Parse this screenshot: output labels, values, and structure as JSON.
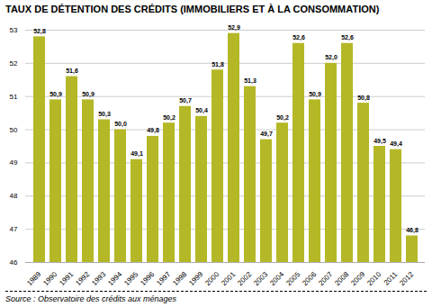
{
  "chart_data": {
    "type": "bar",
    "title": "TAUX DE DÉTENTION DES CRÉDITS (IMMOBILIERS ET À LA CONSOMMATION)",
    "categories": [
      "1989",
      "1990",
      "1991",
      "1992",
      "1993",
      "1994",
      "1995",
      "1996",
      "1997",
      "1998",
      "1999",
      "2000",
      "2001",
      "2002",
      "2003",
      "2004",
      "2005",
      "2006",
      "2007",
      "2008",
      "2009",
      "2010",
      "2011",
      "2012"
    ],
    "values": [
      52.8,
      50.9,
      51.6,
      50.9,
      50.3,
      50.0,
      49.1,
      49.8,
      50.2,
      50.7,
      50.4,
      51.8,
      52.9,
      51.3,
      49.7,
      50.2,
      52.6,
      50.9,
      52.0,
      52.6,
      50.8,
      49.5,
      49.4,
      46.8
    ],
    "value_labels": [
      "52,8",
      "50,9",
      "51,6",
      "50,9",
      "50,3",
      "50,0",
      "49,1",
      "49,8",
      "50,2",
      "50,7",
      "50,4",
      "51,8",
      "52,9",
      "51,3",
      "49,7",
      "50,2",
      "52,6",
      "50,9",
      "52,0",
      "52,6",
      "50,8",
      "49,5",
      "49,4",
      "46,8"
    ],
    "data_labels": true,
    "color": "#b5b826",
    "ylim": [
      46,
      53
    ],
    "yticks": [
      46,
      47,
      48,
      49,
      50,
      51,
      52,
      53
    ],
    "grid": true,
    "annotations": [
      "Source : Observatoire des crédits aux ménages"
    ]
  }
}
